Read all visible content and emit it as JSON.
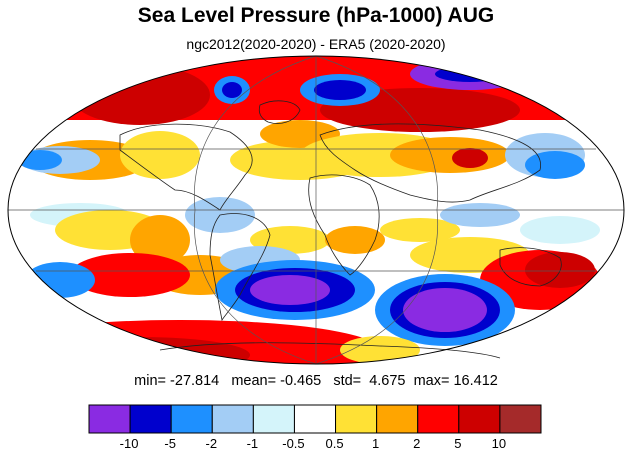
{
  "title": "Sea Level Pressure (hPa-1000) AUG",
  "subtitle": "ngc2012(2020-2020) - ERA5 (2020-2020)",
  "stats": {
    "min_label": "min=",
    "min": "-27.814",
    "mean_label": "mean=",
    "mean": "-0.465",
    "std_label": "std=",
    "std": "4.675",
    "max_label": "max=",
    "max": "16.412"
  },
  "colorbar": {
    "colors": [
      "#8a2be2",
      "#0000cd",
      "#1e90ff",
      "#a3cdf5",
      "#d4f4fa",
      "#ffffff",
      "#ffe135",
      "#ffa500",
      "#ff0000",
      "#cd0000",
      "#a52a2a"
    ],
    "ticks": [
      "-10",
      "-5",
      "-2",
      "-1",
      "-0.5",
      "0.5",
      "1",
      "2",
      "5",
      "10"
    ]
  },
  "map": {
    "projection": "Mollweide",
    "field_colors": {
      "strong_negative": "#8a2be2",
      "negative": "#0000cd",
      "weak_negative": "#1e90ff",
      "light_negative": "#a3cdf5",
      "near_zero_negative": "#d4f4fa",
      "neutral": "#ffffff",
      "weak_positive": "#ffe135",
      "positive": "#ffa500",
      "strong_positive": "#ff0000",
      "very_strong_positive": "#cd0000",
      "extreme_positive": "#a52a2a"
    }
  }
}
